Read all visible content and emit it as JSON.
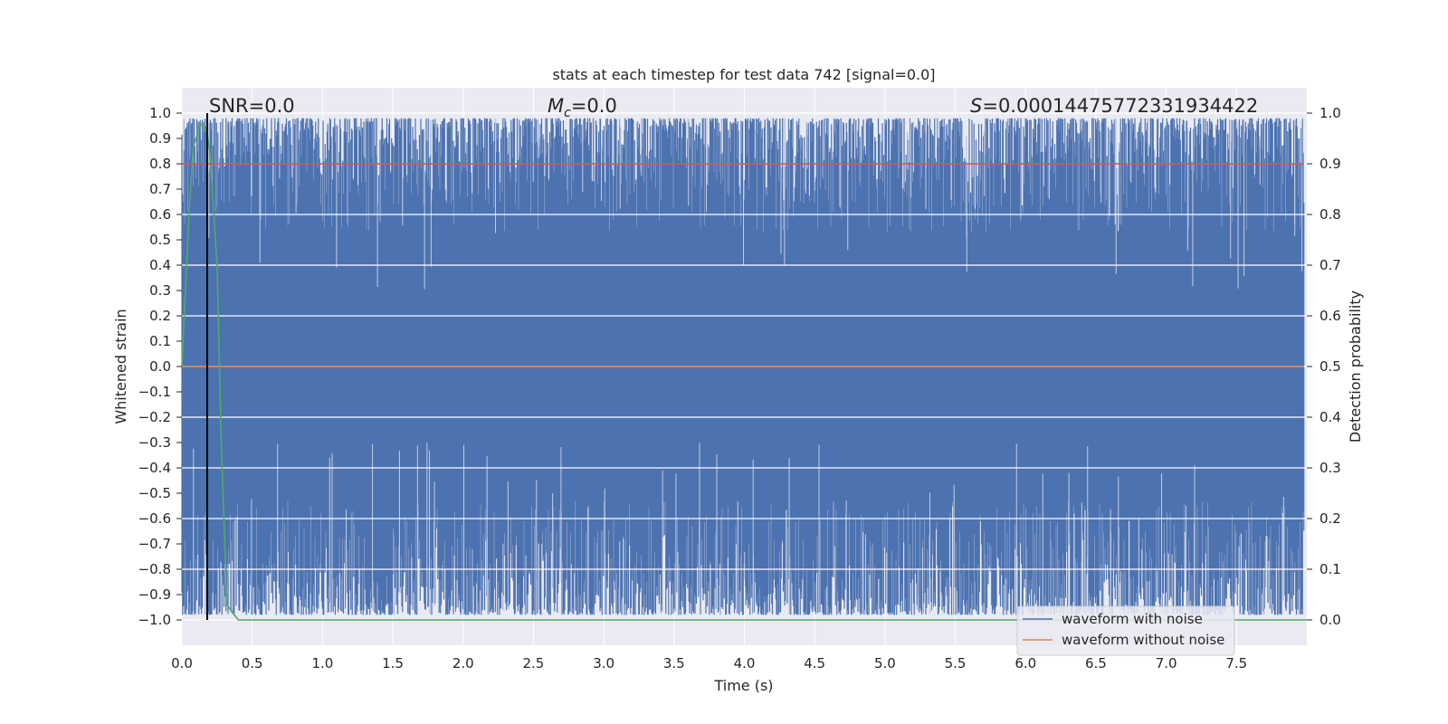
{
  "chart_data": {
    "type": "line",
    "title": "stats at each timestep for test data 742 [signal=0.0]",
    "xlabel": "Time (s)",
    "ylabel_left": "Whitened strain",
    "ylabel_right": "Detection probability",
    "xlim": [
      0.0,
      8.0
    ],
    "ylim_left": [
      -1.1,
      1.1
    ],
    "ylim_right": [
      -0.05,
      1.05
    ],
    "xticks": [
      "0.0",
      "0.5",
      "1.0",
      "1.5",
      "2.0",
      "2.5",
      "3.0",
      "3.5",
      "4.0",
      "4.5",
      "5.0",
      "5.5",
      "6.0",
      "6.5",
      "7.0",
      "7.5"
    ],
    "yticks_left": [
      "1.0",
      "0.9",
      "0.8",
      "0.7",
      "0.6",
      "0.5",
      "0.4",
      "0.3",
      "0.2",
      "0.1",
      "0.0",
      "−0.1",
      "−0.2",
      "−0.3",
      "−0.4",
      "−0.5",
      "−0.6",
      "−0.7",
      "−0.8",
      "−0.9",
      "−1.0"
    ],
    "yticks_right": [
      "1.0",
      "0.9",
      "0.8",
      "0.7",
      "0.6",
      "0.5",
      "0.4",
      "0.3",
      "0.2",
      "0.1",
      "0.0"
    ],
    "annotations": {
      "snr": "SNR=0.0",
      "mc_symbol": "M",
      "mc_subscript": "c",
      "mc_value": "=0.0",
      "s_symbol": "S",
      "s_value": "=0.00014475772331934422"
    },
    "legend": {
      "placement": "lower-right",
      "entries": [
        {
          "label": "waveform with noise",
          "color": "#4c72b0"
        },
        {
          "label": "waveform without noise",
          "color": "#dd8452"
        }
      ]
    },
    "series": [
      {
        "name": "waveform with noise",
        "axis": "left",
        "color": "#4c72b0",
        "description": "dense noise filling approx -1.0 to 1.0 across 0.0-7.98 s"
      },
      {
        "name": "waveform without noise",
        "axis": "left",
        "color": "#dd8452",
        "x": [
          0.0,
          7.98
        ],
        "y": [
          0.0,
          0.0
        ]
      },
      {
        "axis": "right",
        "color": "#55a868",
        "x": [
          0.0,
          0.05,
          0.08,
          0.13,
          0.18,
          0.2,
          0.25,
          0.28,
          0.32,
          0.4,
          0.6,
          8.0
        ],
        "y": [
          0.5,
          0.8,
          0.93,
          0.98,
          0.96,
          0.92,
          0.7,
          0.35,
          0.03,
          0.0,
          0.0,
          0.0
        ]
      },
      {
        "axis": "right",
        "color": "#c44e52",
        "x": [
          0.0,
          7.98
        ],
        "y": [
          0.9,
          0.9
        ]
      }
    ],
    "vline": {
      "x": 0.18,
      "color": "#000000"
    },
    "grid": true,
    "colors": {
      "background": "#eaeaf2",
      "grid": "#ffffff"
    }
  }
}
